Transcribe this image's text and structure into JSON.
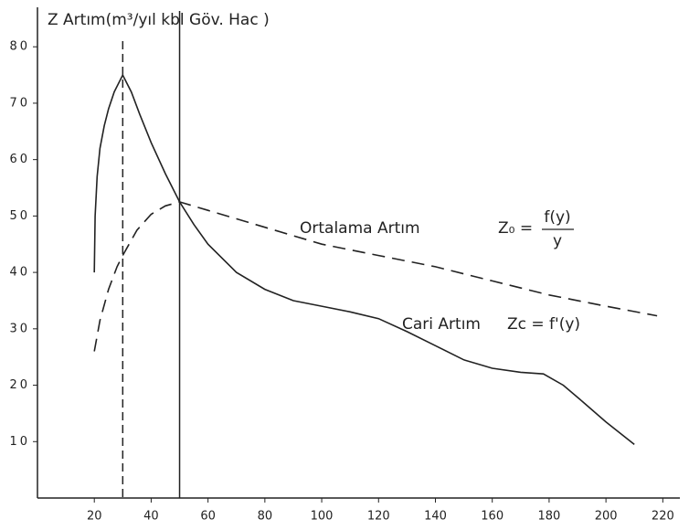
{
  "chart_data": {
    "type": "line",
    "title": "Z  Artım(m³/yıl kbl Göv. Hac )",
    "xlim": [
      0,
      226
    ],
    "ylim": [
      0,
      87
    ],
    "xticks": [
      20,
      40,
      60,
      80,
      100,
      120,
      140,
      160,
      180,
      200,
      220
    ],
    "yticks": [
      10,
      20,
      30,
      40,
      50,
      60,
      70,
      80
    ],
    "vlines": [
      {
        "x": 30,
        "style": "dashed"
      },
      {
        "x": 50,
        "style": "solid"
      }
    ],
    "series": [
      {
        "name": "Cari Artım",
        "color": "#222222",
        "style": "solid",
        "formula": "Zc = f'(y)",
        "x": [
          20,
          20.3,
          21,
          22,
          23.5,
          25,
          27,
          30,
          33,
          36,
          40,
          45,
          50,
          55,
          60,
          70,
          80,
          90,
          100,
          110,
          120,
          130,
          140,
          150,
          160,
          170,
          178,
          185,
          192,
          200,
          210
        ],
        "values": [
          40,
          50,
          57,
          62,
          66,
          69,
          72,
          75,
          72,
          68,
          63,
          57.5,
          52.5,
          48.5,
          45,
          40,
          37,
          35,
          34,
          33,
          31.8,
          29.5,
          27,
          24.5,
          23,
          22.3,
          22,
          20,
          17,
          13.5,
          9.5
        ]
      },
      {
        "name": "Ortalama Artım",
        "color": "#222222",
        "style": "dashed",
        "formula": {
          "lhs": "Z₀ =",
          "numerator": "f(y)",
          "denominator": "y"
        },
        "x": [
          20,
          22,
          25,
          28,
          30,
          35,
          40,
          45,
          50,
          60,
          80,
          100,
          120,
          140,
          160,
          180,
          200,
          218
        ],
        "values": [
          26,
          31.5,
          37,
          41,
          43,
          47.5,
          50.3,
          51.8,
          52.5,
          51,
          48,
          45,
          43,
          41,
          38.5,
          36,
          34,
          32.3
        ]
      }
    ]
  }
}
